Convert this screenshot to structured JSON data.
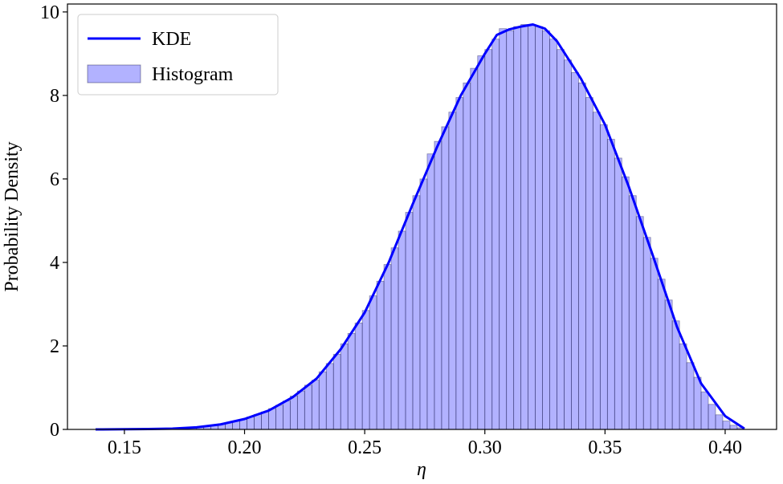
{
  "chart_data": {
    "type": "histogram",
    "xlabel": "η",
    "ylabel": "Probability Density",
    "xlim": [
      0.1263,
      0.4214
    ],
    "ylim": [
      0,
      10.19
    ],
    "xticks": [
      0.15,
      {
        "value": 0.2,
        "label": "0.20"
      },
      0.25,
      {
        "value": 0.3,
        "label": "0.30"
      },
      0.35,
      {
        "value": 0.4,
        "label": "0.40"
      }
    ],
    "yticks": [
      0,
      2,
      4,
      6,
      8,
      10
    ],
    "legend": "upper left",
    "series": [
      {
        "name": "KDE",
        "type": "line",
        "color": "#0000ff",
        "x": [
          0.138,
          0.14,
          0.15,
          0.16,
          0.17,
          0.18,
          0.19,
          0.2,
          0.21,
          0.22,
          0.23,
          0.24,
          0.25,
          0.26,
          0.27,
          0.28,
          0.29,
          0.3,
          0.305,
          0.31,
          0.315,
          0.32,
          0.325,
          0.33,
          0.34,
          0.35,
          0.36,
          0.37,
          0.38,
          0.39,
          0.4,
          0.408
        ],
        "values": [
          0,
          0,
          0.005,
          0.01,
          0.02,
          0.05,
          0.12,
          0.25,
          0.45,
          0.77,
          1.22,
          1.92,
          2.8,
          4.0,
          5.4,
          6.75,
          8.0,
          9.0,
          9.45,
          9.58,
          9.65,
          9.7,
          9.6,
          9.3,
          8.4,
          7.3,
          5.8,
          4.15,
          2.45,
          1.1,
          0.32,
          0.02
        ]
      },
      {
        "name": "Histogram",
        "type": "histogram",
        "color": "#0000ff",
        "bins": [
          0.138,
          0.141,
          0.144,
          0.147,
          0.15,
          0.153,
          0.156,
          0.159,
          0.162,
          0.165,
          0.168,
          0.171,
          0.174,
          0.177,
          0.18,
          0.183,
          0.186,
          0.189,
          0.192,
          0.195,
          0.198,
          0.201,
          0.204,
          0.207,
          0.21,
          0.213,
          0.216,
          0.219,
          0.222,
          0.225,
          0.228,
          0.231,
          0.234,
          0.237,
          0.24,
          0.243,
          0.246,
          0.249,
          0.252,
          0.255,
          0.258,
          0.261,
          0.264,
          0.267,
          0.27,
          0.273,
          0.276,
          0.279,
          0.282,
          0.285,
          0.288,
          0.291,
          0.294,
          0.297,
          0.3,
          0.303,
          0.306,
          0.309,
          0.312,
          0.315,
          0.318,
          0.321,
          0.324,
          0.327,
          0.33,
          0.333,
          0.336,
          0.339,
          0.342,
          0.345,
          0.348,
          0.351,
          0.354,
          0.357,
          0.36,
          0.363,
          0.366,
          0.369,
          0.372,
          0.375,
          0.378,
          0.381,
          0.384,
          0.387,
          0.39,
          0.393,
          0.396,
          0.399,
          0.402,
          0.405,
          0.408
        ],
        "values": [
          0,
          0,
          0,
          0,
          0,
          0.01,
          0.01,
          0.01,
          0.01,
          0.02,
          0.02,
          0.03,
          0.04,
          0.05,
          0.06,
          0.08,
          0.1,
          0.13,
          0.16,
          0.2,
          0.24,
          0.3,
          0.36,
          0.42,
          0.5,
          0.58,
          0.68,
          0.8,
          0.92,
          1.06,
          1.18,
          1.38,
          1.58,
          1.8,
          2.05,
          2.3,
          2.55,
          2.85,
          3.2,
          3.55,
          3.95,
          4.35,
          4.75,
          5.2,
          5.6,
          6.0,
          6.6,
          6.9,
          7.25,
          7.6,
          7.95,
          8.3,
          8.65,
          8.95,
          9.1,
          9.35,
          9.6,
          9.55,
          9.65,
          9.7,
          9.7,
          9.65,
          9.55,
          9.35,
          9.1,
          8.85,
          8.55,
          8.3,
          7.95,
          7.6,
          7.3,
          6.95,
          6.5,
          6.05,
          5.6,
          5.1,
          4.6,
          4.1,
          3.6,
          3.1,
          2.6,
          2.05,
          1.6,
          1.25,
          0.9,
          0.6,
          0.35,
          0.2,
          0.1,
          0.04
        ]
      }
    ]
  }
}
